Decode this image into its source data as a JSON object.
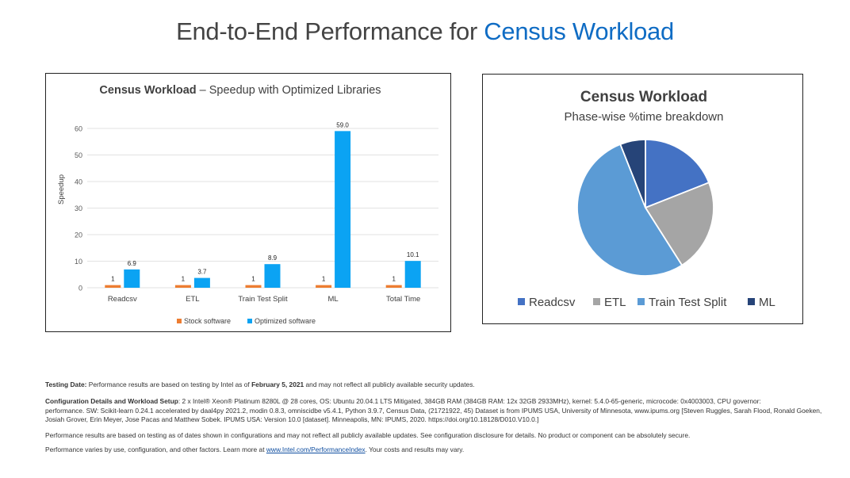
{
  "page": {
    "title_prefix": "End-to-End Performance for ",
    "title_accent": "Census Workload"
  },
  "chart_data": [
    {
      "type": "bar",
      "title_bold": "Census Workload",
      "title_rest": " – Speedup with Optimized Libraries",
      "xlabel": "",
      "ylabel": "Speedup",
      "ylim": [
        0,
        60
      ],
      "yticks": [
        0,
        10,
        20,
        30,
        40,
        50,
        60
      ],
      "categories": [
        "Readcsv",
        "ETL",
        "Train Test Split",
        "ML",
        "Total Time"
      ],
      "series": [
        {
          "name": "Stock software",
          "color": "#ed7d31",
          "values": [
            1,
            1,
            1,
            1,
            1
          ],
          "labels": [
            "1",
            "1",
            "1",
            "1",
            "1"
          ]
        },
        {
          "name": "Optimized software",
          "color": "#0ba3f3",
          "values": [
            6.9,
            3.7,
            8.9,
            59.0,
            10.1
          ],
          "labels": [
            "6.9",
            "3.7",
            "8.9",
            "59.0",
            "10.1"
          ]
        }
      ],
      "grid": true,
      "legend": "bottom"
    },
    {
      "type": "pie",
      "title": "Census Workload",
      "subtitle": "Phase-wise %time breakdown",
      "categories": [
        "Readcsv",
        "ETL",
        "Train Test Split",
        "ML"
      ],
      "values": [
        19,
        22,
        53,
        6
      ],
      "colors": [
        "#4472c4",
        "#a5a5a5",
        "#5b9bd5",
        "#264478"
      ],
      "legend": "bottom"
    }
  ],
  "footer": {
    "testing_label": "Testing Date:",
    "testing_text_1": " Performance results are based on testing by Intel as of ",
    "testing_date": "February 5, 2021",
    "testing_text_2": " and may not reflect all publicly available security updates.",
    "config_label": "Configuration Details and Workload Setup",
    "config_line_1": ":  2 x Intel® Xeon® Platinum 8280L @ 28 cores, OS: Ubuntu 20.04.1 LTS Mitigated, 384GB RAM (384GB RAM: 12x 32GB 2933MHz), kernel: 5.4.0-65-generic, microcode: 0x4003003, CPU governor:",
    "config_line_2": "performance. SW: Scikit-learn 0.24.1 accelerated by daal4py 2021.2, modin 0.8.3, omniscidbe v5.4.1, Python 3.9.7, Census Data, (21721922, 45) Dataset is from IPUMS USA, University of Minnesota, www.ipums.org [Steven Ruggles, Sarah Flood, Ronald Goeken,",
    "config_line_3": "Josiah Grover, Erin Meyer, Jose Pacas and Matthew Sobek. IPUMS USA: Version 10.0 [dataset]. Minneapolis, MN: IPUMS, 2020. https://doi.org/10.18128/D010.V10.0.]",
    "disclaimer": "Performance results are based on testing as of dates shown in configurations and may not reflect all publicly available updates. See configuration disclosure for details.  No product or component can be absolutely secure.",
    "varies_1": "Performance varies by use, configuration, and other factors. Learn more at ",
    "varies_link": "www.Intel.com/PerformanceIndex",
    "varies_2": ". Your costs and results may vary."
  }
}
